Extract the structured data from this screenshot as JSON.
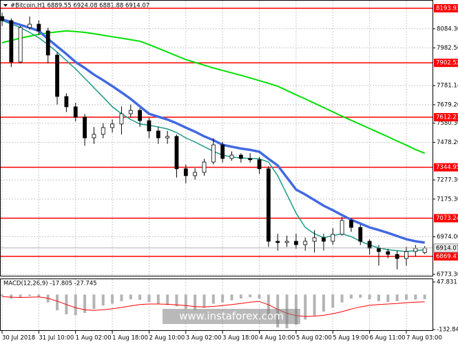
{
  "chart_data": {
    "type": "candlestick",
    "title": "#Bitcoin,H1  6889.55 6924.08 6881.88 6914.07",
    "watermark": "www.instaforex.com",
    "xlim": [
      0,
      47
    ],
    "xticks": [
      {
        "value": 0,
        "label": "30 Jul 2018"
      },
      {
        "value": 4,
        "label": "31 Jul 10:00"
      },
      {
        "value": 8,
        "label": "1 Aug 02:00"
      },
      {
        "value": 12,
        "label": "1 Aug 18:00"
      },
      {
        "value": 16,
        "label": "2 Aug 10:00"
      },
      {
        "value": 20,
        "label": "3 Aug 02:00"
      },
      {
        "value": 24,
        "label": "3 Aug 18:00"
      },
      {
        "value": 28,
        "label": "4 Aug 10:00"
      },
      {
        "value": 32,
        "label": "5 Aug 02:00"
      },
      {
        "value": 36,
        "label": "5 Aug 19:00"
      },
      {
        "value": 40,
        "label": "6 Aug 11:00"
      },
      {
        "value": 44,
        "label": "7 Aug 03:00"
      }
    ],
    "ylim": [
      6766,
      8227
    ],
    "yticks": [
      {
        "value": 8084.3,
        "label": "8084.30"
      },
      7982.56,
      7781.14,
      {
        "value": 7679.2,
        "label": "7679.20"
      },
      7580.36,
      {
        "value": 7478.2,
        "label": "7478.20"
      },
      7277.36,
      {
        "value": 7175.3,
        "label": "7175.30"
      },
      {
        "value": 6974,
        "label": "6974.00"
      },
      {
        "value": 6773.3,
        "label": "6773.30"
      }
    ],
    "grid": true,
    "candle_color": "#000000",
    "candles": [
      [
        8150,
        8170,
        8100,
        8128
      ],
      [
        8128,
        8140,
        7880,
        7907
      ],
      [
        7907,
        8100,
        7900,
        8091
      ],
      [
        8091,
        8150,
        8080,
        8109
      ],
      [
        8109,
        8130,
        8050,
        8073
      ],
      [
        8073,
        8090,
        7900,
        7944
      ],
      [
        7944,
        7960,
        7680,
        7723
      ],
      [
        7723,
        7740,
        7640,
        7668
      ],
      [
        7668,
        7690,
        7590,
        7613
      ],
      [
        7613,
        7630,
        7460,
        7502
      ],
      [
        7502,
        7560,
        7470,
        7521
      ],
      [
        7521,
        7580,
        7500,
        7557
      ],
      [
        7557,
        7600,
        7530,
        7576
      ],
      [
        7576,
        7670,
        7520,
        7631
      ],
      [
        7631,
        7680,
        7610,
        7649
      ],
      [
        7649,
        7660,
        7560,
        7594
      ],
      [
        7594,
        7610,
        7500,
        7539
      ],
      [
        7539,
        7560,
        7470,
        7502
      ],
      [
        7502,
        7540,
        7470,
        7510
      ],
      [
        7510,
        7520,
        7290,
        7337
      ],
      [
        7337,
        7360,
        7260,
        7300
      ],
      [
        7300,
        7340,
        7280,
        7318
      ],
      [
        7318,
        7390,
        7300,
        7373
      ],
      [
        7373,
        7500,
        7360,
        7465
      ],
      [
        7465,
        7480,
        7370,
        7392
      ],
      [
        7392,
        7430,
        7380,
        7410
      ],
      [
        7410,
        7420,
        7370,
        7392
      ],
      [
        7392,
        7420,
        7370,
        7385
      ],
      [
        7385,
        7400,
        7310,
        7337
      ],
      [
        7337,
        7350,
        6920,
        6950
      ],
      [
        6950,
        6990,
        6900,
        6943
      ],
      [
        6943,
        6980,
        6920,
        6950
      ],
      [
        6950,
        6990,
        6910,
        6932
      ],
      [
        6932,
        6970,
        6900,
        6950
      ],
      [
        6950,
        7010,
        6890,
        6969
      ],
      [
        6969,
        6990,
        6900,
        6950
      ],
      [
        6950,
        7020,
        6930,
        6987
      ],
      [
        6987,
        7080,
        6980,
        7061
      ],
      [
        7061,
        7070,
        7000,
        7024
      ],
      [
        7024,
        7040,
        6930,
        6950
      ],
      [
        6950,
        6960,
        6880,
        6913
      ],
      [
        6913,
        6930,
        6820,
        6895
      ],
      [
        6895,
        6910,
        6860,
        6880
      ],
      [
        6880,
        6900,
        6800,
        6858
      ],
      [
        6858,
        6920,
        6820,
        6895
      ],
      [
        6895,
        6930,
        6870,
        6913
      ],
      [
        6889.55,
        6924.08,
        6881.88,
        6914.07
      ]
    ],
    "lines": [
      {
        "color": "#00e000",
        "width": 2,
        "values": [
          8010,
          8022,
          8034,
          8045,
          8055,
          8062,
          8068,
          8073,
          8070,
          8065,
          8058,
          8050,
          8042,
          8034,
          8026,
          8018,
          8000,
          7980,
          7960,
          7940,
          7920,
          7905,
          7890,
          7875,
          7862,
          7849,
          7836,
          7822,
          7808,
          7793,
          7778,
          7755,
          7732,
          7710,
          7687,
          7664,
          7641,
          7618,
          7596,
          7574,
          7552,
          7530,
          7508,
          7485,
          7463,
          7440,
          7420
        ]
      },
      {
        "color": "#1a9a8a",
        "width": 1.5,
        "values": [
          8128,
          8110,
          8090,
          8065,
          8036,
          8000,
          7960,
          7915,
          7870,
          7820,
          7770,
          7720,
          7668,
          7631,
          7600,
          7576,
          7570,
          7560,
          7550,
          7530,
          7502,
          7480,
          7455,
          7430,
          7410,
          7400,
          7395,
          7392,
          7390,
          7373,
          7300,
          7200,
          7100,
          7024,
          6990,
          6969,
          6980,
          6990,
          6975,
          6950,
          6930,
          6915,
          6905,
          6900,
          6895,
          6900,
          6905
        ]
      },
      {
        "color": "#4169e1",
        "width": 3.5,
        "values": [
          8135,
          8120,
          8105,
          8090,
          8073,
          8030,
          7990,
          7950,
          7907,
          7875,
          7840,
          7810,
          7778,
          7745,
          7710,
          7670,
          7631,
          7615,
          7600,
          7580,
          7557,
          7535,
          7510,
          7490,
          7465,
          7455,
          7445,
          7438,
          7428,
          7390,
          7355,
          7290,
          7226,
          7200,
          7170,
          7140,
          7116,
          7090,
          7065,
          7045,
          7024,
          7010,
          6995,
          6978,
          6961,
          6950,
          6943
        ]
      }
    ],
    "levels": {
      "color": "#ff0000",
      "values": [
        8193.93,
        7902.52,
        7612.21,
        7344.95,
        7073.24,
        6869.47
      ]
    },
    "macd": {
      "title": "MACD(12,26,9) -17.805 -27.745",
      "ylim": [
        -132.847,
        47.831
      ],
      "yticks": [
        47.831,
        -132.847
      ],
      "bar_color": "#b4b4b4",
      "signal_color": "#ff0000",
      "values": [
        -5,
        -15,
        -10,
        -5,
        -8,
        -30,
        -60,
        -75,
        -78,
        -70,
        -55,
        -42,
        -35,
        -25,
        -18,
        -20,
        -28,
        -35,
        -40,
        -45,
        -55,
        -58,
        -50,
        -35,
        -30,
        -22,
        -15,
        -10,
        -15,
        -90,
        -125,
        -128,
        -115,
        -95,
        -80,
        -65,
        -50,
        -30,
        -15,
        -12,
        -18,
        -25,
        -28,
        -25,
        -20,
        -19,
        -17.805
      ],
      "signal": [
        -8,
        -10,
        -11,
        -10,
        -9,
        -14,
        -25,
        -38,
        -50,
        -58,
        -60,
        -58,
        -54,
        -49,
        -43,
        -38,
        -36,
        -36,
        -37,
        -39,
        -42,
        -46,
        -47,
        -45,
        -42,
        -38,
        -34,
        -29,
        -26,
        -39,
        -56,
        -71,
        -80,
        -83,
        -82,
        -79,
        -73,
        -65,
        -55,
        -47,
        -41,
        -38,
        -36,
        -34,
        -31,
        -29,
        -27.745
      ]
    }
  }
}
